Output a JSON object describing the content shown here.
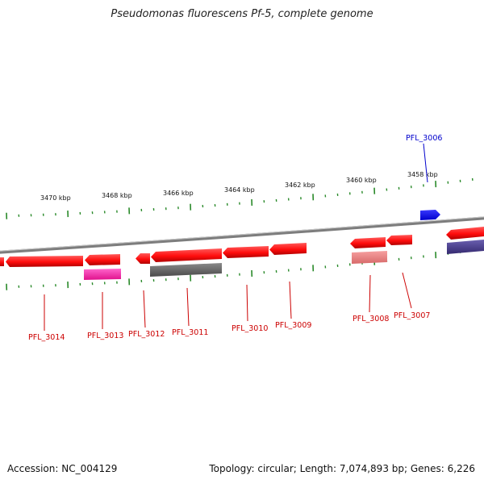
{
  "title": "Pseudomonas fluorescens Pf-5, complete genome",
  "footer": {
    "accession": "Accession: NC_004129",
    "summary": "Topology: circular; Length: 7,074,893 bp; Genes: 6,226"
  },
  "colors": {
    "gene_red": "#ff1a1a",
    "gene_red_dark": "#c40000",
    "gene_pink": "#ff2aa8",
    "gene_gray": "#666666",
    "gene_salmon": "#f08080",
    "gene_navy": "#4a3f8c",
    "gene_blue": "#0000ff",
    "tick_green": "#2a8a2a",
    "backbone": "#888888",
    "label_red": "#cc0000",
    "label_blue": "#0000cc"
  },
  "scale": {
    "unit": "kbp",
    "labels": [
      {
        "kbp": 3470,
        "text": "3470 kbp"
      },
      {
        "kbp": 3468,
        "text": "3468 kbp"
      },
      {
        "kbp": 3466,
        "text": "3466 kbp"
      },
      {
        "kbp": 3464,
        "text": "3464 kbp"
      },
      {
        "kbp": 3462,
        "text": "3462 kbp"
      },
      {
        "kbp": 3460,
        "text": "3460 kbp"
      },
      {
        "kbp": 3458,
        "text": "3458 kbp"
      }
    ]
  },
  "genes": [
    {
      "id": "PFL_3014",
      "label": "PFL_3014",
      "color": "red"
    },
    {
      "id": "PFL_3013",
      "label": "PFL_3013",
      "color": "red"
    },
    {
      "id": "PFL_3012",
      "label": "PFL_3012",
      "color": "red"
    },
    {
      "id": "PFL_3011",
      "label": "PFL_3011",
      "color": "red"
    },
    {
      "id": "PFL_3010",
      "label": "PFL_3010",
      "color": "red"
    },
    {
      "id": "PFL_3009",
      "label": "PFL_3009",
      "color": "red"
    },
    {
      "id": "PFL_3008",
      "label": "PFL_3008",
      "color": "red"
    },
    {
      "id": "PFL_3007",
      "label": "PFL_3007",
      "color": "red"
    },
    {
      "id": "PFL_3006",
      "label": "PFL_3006",
      "color": "blue"
    }
  ]
}
